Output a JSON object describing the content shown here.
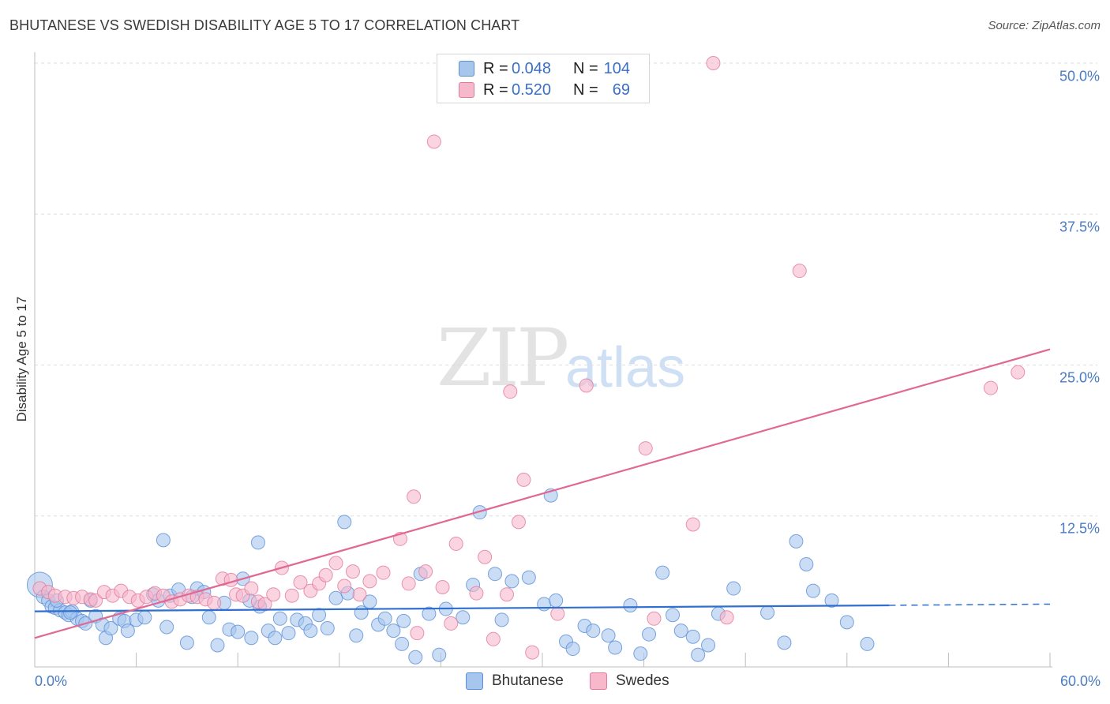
{
  "title": "BHUTANESE VS SWEDISH DISABILITY AGE 5 TO 17 CORRELATION CHART",
  "source": "Source: ZipAtlas.com",
  "watermark": {
    "part1": "ZIP",
    "part2": "atlas"
  },
  "legend": {
    "rows": [
      {
        "r_label": "R =",
        "r_value": "0.048",
        "n_label": "N =",
        "n_value": "104",
        "color": "#a7c6ee"
      },
      {
        "r_label": "R =",
        "r_value": "0.520",
        "n_label": "N =",
        "n_value": "69",
        "color": "#f7b8cb"
      }
    ]
  },
  "bottom_legend": [
    {
      "label": "Bhutanese",
      "color": "#a7c6ee"
    },
    {
      "label": "Swedes",
      "color": "#f7b8cb"
    }
  ],
  "colors": {
    "blue_fill": "#a7c6ee",
    "blue_stroke": "#5b8fd6",
    "blue_line": "#2f6fd0",
    "pink_fill": "#f7b8cb",
    "pink_stroke": "#e27b9c",
    "pink_line": "#e06892",
    "tick_text": "#4a7cc4",
    "grid": "#dddddd"
  },
  "chart_data": {
    "type": "scatter",
    "title": "BHUTANESE VS SWEDISH DISABILITY AGE 5 TO 17 CORRELATION CHART",
    "xlabel": "",
    "ylabel": "Disability Age 5 to 17",
    "xlim": [
      0,
      60
    ],
    "ylim": [
      0,
      50
    ],
    "x_tick_labels": [
      "0.0%",
      "60.0%"
    ],
    "y_ticks": [
      12.5,
      25.0,
      37.5,
      50.0
    ],
    "y_tick_labels": [
      "12.5%",
      "25.0%",
      "37.5%",
      "50.0%"
    ],
    "grid": true,
    "legend_position": "top-center",
    "series": [
      {
        "name": "Bhutanese",
        "r": 0.048,
        "n": 104,
        "trend": {
          "x0": 0,
          "y0": 4.6,
          "x1": 50.5,
          "y1": 5.1,
          "dashed_to_x": 60,
          "dashed_to_y": 5.2
        },
        "points": [
          [
            0.3,
            6.8
          ],
          [
            0.5,
            5.8
          ],
          [
            0.8,
            5.5
          ],
          [
            1.0,
            5.0
          ],
          [
            1.2,
            4.9
          ],
          [
            1.5,
            4.7
          ],
          [
            1.8,
            4.5
          ],
          [
            2.0,
            4.3
          ],
          [
            2.2,
            4.6
          ],
          [
            2.5,
            4.0
          ],
          [
            2.8,
            3.8
          ],
          [
            3.0,
            3.6
          ],
          [
            3.3,
            5.5
          ],
          [
            3.6,
            4.2
          ],
          [
            4.0,
            3.5
          ],
          [
            4.2,
            2.4
          ],
          [
            4.5,
            3.2
          ],
          [
            5.0,
            4.0
          ],
          [
            5.3,
            3.8
          ],
          [
            5.5,
            3.0
          ],
          [
            6.0,
            3.9
          ],
          [
            6.5,
            4.1
          ],
          [
            7.0,
            6.0
          ],
          [
            7.3,
            5.5
          ],
          [
            7.8,
            3.3
          ],
          [
            8.0,
            5.9
          ],
          [
            8.5,
            6.4
          ],
          [
            9.0,
            2.0
          ],
          [
            9.3,
            5.8
          ],
          [
            9.6,
            6.5
          ],
          [
            10.0,
            6.2
          ],
          [
            10.3,
            4.1
          ],
          [
            10.8,
            1.8
          ],
          [
            11.2,
            5.3
          ],
          [
            11.5,
            3.1
          ],
          [
            12.0,
            2.9
          ],
          [
            12.3,
            7.3
          ],
          [
            12.8,
            2.4
          ],
          [
            13.3,
            5.0
          ],
          [
            13.8,
            3.0
          ],
          [
            14.2,
            2.4
          ],
          [
            14.5,
            4.0
          ],
          [
            15.0,
            2.8
          ],
          [
            15.5,
            3.9
          ],
          [
            16.0,
            3.6
          ],
          [
            16.3,
            3.0
          ],
          [
            16.8,
            4.3
          ],
          [
            17.3,
            3.2
          ],
          [
            17.8,
            5.7
          ],
          [
            18.5,
            6.1
          ],
          [
            19.0,
            2.6
          ],
          [
            19.3,
            4.5
          ],
          [
            19.8,
            5.4
          ],
          [
            20.3,
            3.5
          ],
          [
            20.7,
            4.0
          ],
          [
            21.2,
            3.0
          ],
          [
            21.7,
            1.9
          ],
          [
            22.5,
            0.8
          ],
          [
            22.8,
            7.7
          ],
          [
            23.3,
            4.4
          ],
          [
            23.9,
            1.0
          ],
          [
            24.3,
            4.8
          ],
          [
            25.3,
            4.1
          ],
          [
            25.9,
            6.8
          ],
          [
            26.3,
            12.8
          ],
          [
            27.2,
            7.7
          ],
          [
            28.2,
            7.1
          ],
          [
            29.2,
            7.4
          ],
          [
            30.1,
            5.2
          ],
          [
            30.5,
            14.2
          ],
          [
            30.8,
            5.5
          ],
          [
            31.4,
            2.1
          ],
          [
            31.8,
            1.5
          ],
          [
            32.5,
            3.4
          ],
          [
            33.0,
            3.0
          ],
          [
            33.9,
            2.6
          ],
          [
            34.3,
            1.6
          ],
          [
            35.2,
            5.1
          ],
          [
            35.8,
            1.1
          ],
          [
            36.3,
            2.7
          ],
          [
            37.1,
            7.8
          ],
          [
            37.7,
            4.3
          ],
          [
            38.2,
            3.0
          ],
          [
            38.9,
            2.5
          ],
          [
            39.2,
            1.0
          ],
          [
            39.8,
            1.8
          ],
          [
            40.4,
            4.4
          ],
          [
            41.3,
            6.5
          ],
          [
            43.3,
            4.5
          ],
          [
            44.3,
            2.0
          ],
          [
            45.0,
            10.4
          ],
          [
            45.6,
            8.5
          ],
          [
            46.0,
            6.3
          ],
          [
            47.1,
            5.5
          ],
          [
            48.0,
            3.7
          ],
          [
            49.2,
            1.9
          ],
          [
            1.3,
            5.5
          ],
          [
            2.1,
            4.5
          ],
          [
            7.6,
            10.5
          ],
          [
            13.2,
            10.3
          ],
          [
            18.3,
            12.0
          ],
          [
            21.8,
            3.8
          ],
          [
            12.7,
            5.5
          ],
          [
            27.6,
            3.9
          ]
        ]
      },
      {
        "name": "Swedes",
        "r": 0.52,
        "n": 69,
        "trend": {
          "x0": 0,
          "y0": 2.4,
          "x1": 60,
          "y1": 26.3
        },
        "points": [
          [
            0.3,
            6.5
          ],
          [
            0.8,
            6.2
          ],
          [
            1.2,
            5.9
          ],
          [
            1.8,
            5.8
          ],
          [
            2.3,
            5.7
          ],
          [
            2.8,
            5.8
          ],
          [
            3.3,
            5.6
          ],
          [
            3.6,
            5.5
          ],
          [
            4.1,
            6.2
          ],
          [
            4.6,
            5.9
          ],
          [
            5.1,
            6.3
          ],
          [
            5.6,
            5.8
          ],
          [
            6.1,
            5.5
          ],
          [
            6.6,
            5.8
          ],
          [
            7.1,
            6.1
          ],
          [
            7.6,
            5.9
          ],
          [
            8.1,
            5.4
          ],
          [
            8.6,
            5.6
          ],
          [
            9.1,
            5.9
          ],
          [
            9.6,
            5.8
          ],
          [
            10.1,
            5.6
          ],
          [
            10.6,
            5.3
          ],
          [
            11.1,
            7.3
          ],
          [
            11.6,
            7.2
          ],
          [
            11.9,
            6.0
          ],
          [
            12.3,
            5.9
          ],
          [
            12.8,
            6.5
          ],
          [
            13.2,
            5.4
          ],
          [
            13.6,
            5.2
          ],
          [
            14.1,
            6.0
          ],
          [
            14.6,
            8.2
          ],
          [
            15.2,
            5.9
          ],
          [
            15.7,
            7.0
          ],
          [
            16.3,
            6.3
          ],
          [
            16.8,
            6.9
          ],
          [
            17.2,
            7.6
          ],
          [
            17.8,
            8.6
          ],
          [
            18.3,
            6.7
          ],
          [
            18.8,
            7.9
          ],
          [
            19.2,
            6.0
          ],
          [
            19.8,
            7.1
          ],
          [
            20.6,
            7.8
          ],
          [
            21.6,
            10.6
          ],
          [
            22.1,
            6.9
          ],
          [
            22.6,
            2.8
          ],
          [
            23.1,
            7.9
          ],
          [
            23.6,
            43.5
          ],
          [
            24.1,
            6.6
          ],
          [
            24.6,
            3.6
          ],
          [
            24.9,
            10.2
          ],
          [
            26.1,
            6.1
          ],
          [
            26.6,
            9.1
          ],
          [
            27.1,
            2.3
          ],
          [
            27.9,
            6.0
          ],
          [
            28.6,
            12.0
          ],
          [
            28.9,
            15.5
          ],
          [
            29.4,
            1.2
          ],
          [
            30.9,
            4.4
          ],
          [
            32.6,
            23.3
          ],
          [
            36.1,
            18.1
          ],
          [
            36.6,
            4.0
          ],
          [
            38.9,
            11.8
          ],
          [
            40.1,
            50.0
          ],
          [
            40.9,
            4.1
          ],
          [
            45.2,
            32.8
          ],
          [
            56.5,
            23.1
          ],
          [
            58.1,
            24.4
          ],
          [
            22.4,
            14.1
          ],
          [
            28.1,
            22.8
          ]
        ]
      }
    ]
  }
}
